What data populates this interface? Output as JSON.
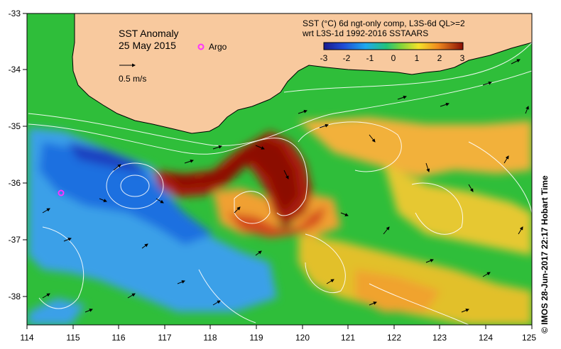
{
  "map": {
    "title": "SST Anomaly",
    "date": "25 May 2015",
    "argo_label": "Argo",
    "velocity_scale": "0.5 m/s",
    "legend_line1": "SST (°C) 6d ngt-only comp, L3S-6d QL>=2",
    "legend_line2": "wrt L3S-1d 1992-2016 SSTAARS",
    "colorbar_ticks": [
      "-3",
      "-2",
      "-1",
      "0",
      "1",
      "2",
      "3"
    ],
    "lon_ticks": [
      "114",
      "115",
      "116",
      "117",
      "118",
      "119",
      "120",
      "121",
      "122",
      "123",
      "124",
      "125"
    ],
    "lat_ticks": [
      "-33",
      "-34",
      "-35",
      "-36",
      "-37",
      "-38"
    ],
    "credit": "© IMOS 28-Jun-2017 22:17 Hobart Time",
    "colors": {
      "land": "#f8c99e",
      "ocean_green": "#2fbe3a",
      "warm_orange": "#f2a23a",
      "hot_red": "#a21d07",
      "cool_blue": "#2f8ff0",
      "argo": "#ff33ff"
    }
  }
}
